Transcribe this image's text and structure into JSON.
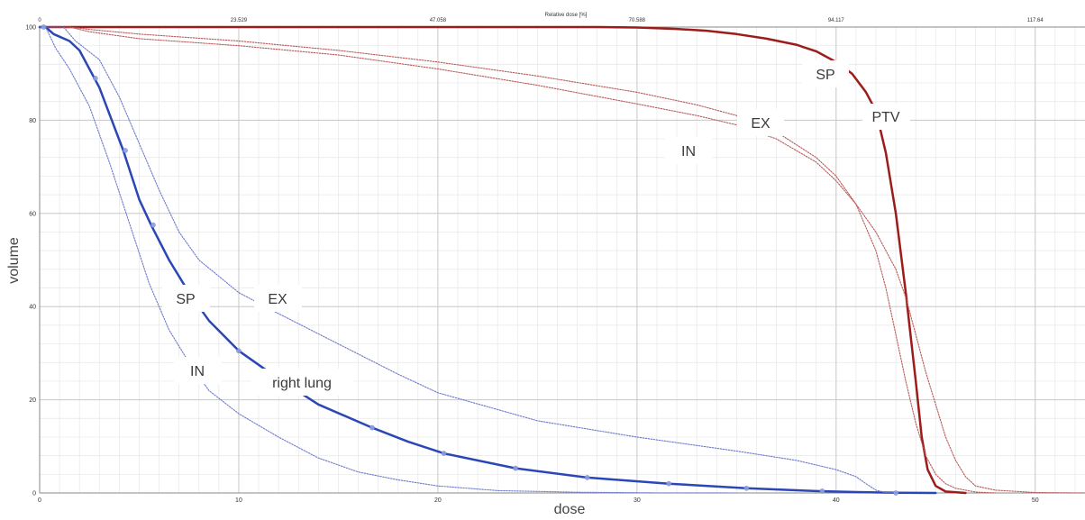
{
  "chart_data": {
    "type": "line",
    "xlabel": "dose",
    "ylabel": "volume",
    "top_axis_label": "Relative dose [%]",
    "xlim": [
      0,
      52.5
    ],
    "ylim": [
      0,
      100
    ],
    "grid": true,
    "x_ticks": [
      0,
      10,
      20,
      30,
      40,
      50
    ],
    "x_tick_labels": [
      "0",
      "10",
      "20",
      "30",
      "40",
      "50"
    ],
    "y_ticks": [
      0,
      20,
      40,
      60,
      80,
      100
    ],
    "y_tick_labels": [
      "0",
      "20",
      "40",
      "60",
      "80",
      "100"
    ],
    "top_ticks": [
      0,
      10,
      20,
      30,
      40,
      50
    ],
    "top_tick_labels": [
      "0",
      "23.529",
      "47.058",
      "70.588",
      "94.117",
      "117.64"
    ],
    "colors": {
      "ptv": "#9c1b1b",
      "ptv_dotted": "#b85a5a",
      "lung": "#2a47b5",
      "lung_dotted": "#6a78cc",
      "grid_minor": "#e7e7e7",
      "grid_major": "#c8c8c8"
    },
    "series": [
      {
        "group": "PTV",
        "style": "solid",
        "color_key": "ptv",
        "x": [
          0,
          5,
          10,
          15,
          20,
          25,
          28,
          30,
          32,
          33.5,
          35,
          36.5,
          38,
          39,
          40,
          40.8,
          41.5,
          42,
          42.5,
          43,
          43.5,
          44,
          44.3,
          44.6,
          45,
          45.5,
          46.5
        ],
        "y": [
          100,
          100,
          100,
          100,
          100,
          100,
          100,
          99.9,
          99.6,
          99.2,
          98.5,
          97.5,
          96.2,
          94.8,
          92.5,
          90,
          86,
          82,
          73,
          60,
          43,
          24,
          12,
          5,
          1.5,
          0.3,
          0
        ]
      },
      {
        "group": "PTV",
        "style": "dotted",
        "color_key": "ptv_dotted",
        "x": [
          0,
          1.5,
          2.5,
          5,
          10,
          15,
          20,
          25,
          30,
          33,
          35,
          37,
          39,
          40,
          41,
          42,
          42.5,
          43,
          43.5,
          44,
          44.5,
          45,
          45.5,
          46,
          47,
          48
        ],
        "y": [
          100,
          100,
          99.5,
          98.5,
          97,
          95,
          92.5,
          89.5,
          86,
          83.3,
          81,
          77.5,
          72,
          68,
          62,
          52,
          44,
          34,
          24,
          15,
          8,
          4,
          2,
          1,
          0.2,
          0
        ]
      },
      {
        "group": "PTV",
        "style": "dotted",
        "color_key": "ptv_dotted",
        "x": [
          0,
          1.5,
          2.5,
          5,
          10,
          15,
          20,
          25,
          30,
          33,
          35,
          37,
          39,
          40,
          41,
          42,
          43,
          43.5,
          44,
          44.5,
          45,
          45.5,
          46,
          46.5,
          47,
          48,
          50,
          52.5
        ],
        "y": [
          100,
          100,
          99,
          97.5,
          96,
          94,
          91,
          87.5,
          83.5,
          81,
          79,
          76,
          71,
          67,
          62,
          56,
          48,
          42,
          34,
          26,
          19,
          12,
          7,
          3.5,
          1.5,
          0.6,
          0.1,
          0
        ]
      },
      {
        "group": "right lung",
        "style": "solid",
        "color_key": "lung",
        "x": [
          0,
          0.3,
          0.7,
          1.5,
          2,
          3,
          4.2,
          5,
          5.6,
          6.5,
          7.5,
          8.5,
          10,
          12,
          14,
          16.7,
          18.5,
          20.3,
          23.9,
          27.5,
          31.6,
          35.5,
          39,
          41,
          43,
          45
        ],
        "y": [
          100,
          100,
          98.5,
          97,
          95,
          87,
          73.5,
          63,
          57.5,
          50,
          43,
          37,
          30.5,
          24.5,
          19,
          14,
          11,
          8.5,
          5.3,
          3.3,
          2,
          1,
          0.4,
          0.2,
          0.05,
          0
        ]
      },
      {
        "group": "right lung",
        "style": "dotted",
        "color_key": "lung_dotted",
        "x": [
          0,
          0.3,
          1.2,
          1.8,
          3,
          4,
          5,
          6,
          7,
          8,
          10,
          12,
          15,
          18,
          20,
          25,
          30,
          35,
          38,
          40,
          41,
          41.5,
          42,
          42.5,
          43
        ],
        "y": [
          100,
          100,
          100,
          97,
          93,
          85,
          75,
          65,
          56,
          50,
          43,
          38.5,
          32,
          25.5,
          21.5,
          15.5,
          12,
          9,
          7,
          5,
          3.5,
          2,
          0.6,
          0.1,
          0
        ]
      },
      {
        "group": "right lung",
        "style": "dotted",
        "color_key": "lung_dotted",
        "x": [
          0,
          0.3,
          0.8,
          1.5,
          2.5,
          3.5,
          4.5,
          5.5,
          6.5,
          7.5,
          8.5,
          10,
          12,
          14,
          16,
          18,
          20,
          23,
          27,
          31,
          35
        ],
        "y": [
          100,
          100,
          95.5,
          91,
          83,
          71,
          58,
          45,
          35,
          28,
          22,
          17,
          12,
          7.5,
          4.5,
          2.8,
          1.5,
          0.5,
          0.15,
          0.02,
          0
        ]
      }
    ],
    "markers": {
      "color_key": "lung",
      "x": [
        0.2,
        2.8,
        4.3,
        5.7,
        10,
        16.7,
        20.3,
        23.9,
        27.5,
        31.6,
        35.5,
        39.3,
        43
      ],
      "y": [
        100,
        89,
        73.5,
        57.5,
        30.5,
        14,
        8.5,
        5.3,
        3.3,
        2,
        1,
        0.4,
        0
      ]
    },
    "annotations": [
      {
        "id": "ptv-sp",
        "text": "SP"
      },
      {
        "id": "ptv-label",
        "text": "PTV"
      },
      {
        "id": "ptv-ex",
        "text": "EX"
      },
      {
        "id": "ptv-in",
        "text": "IN"
      },
      {
        "id": "lung-sp",
        "text": "SP"
      },
      {
        "id": "lung-ex",
        "text": "EX"
      },
      {
        "id": "lung-in",
        "text": "IN"
      },
      {
        "id": "lung-label",
        "text": "right lung"
      }
    ]
  }
}
